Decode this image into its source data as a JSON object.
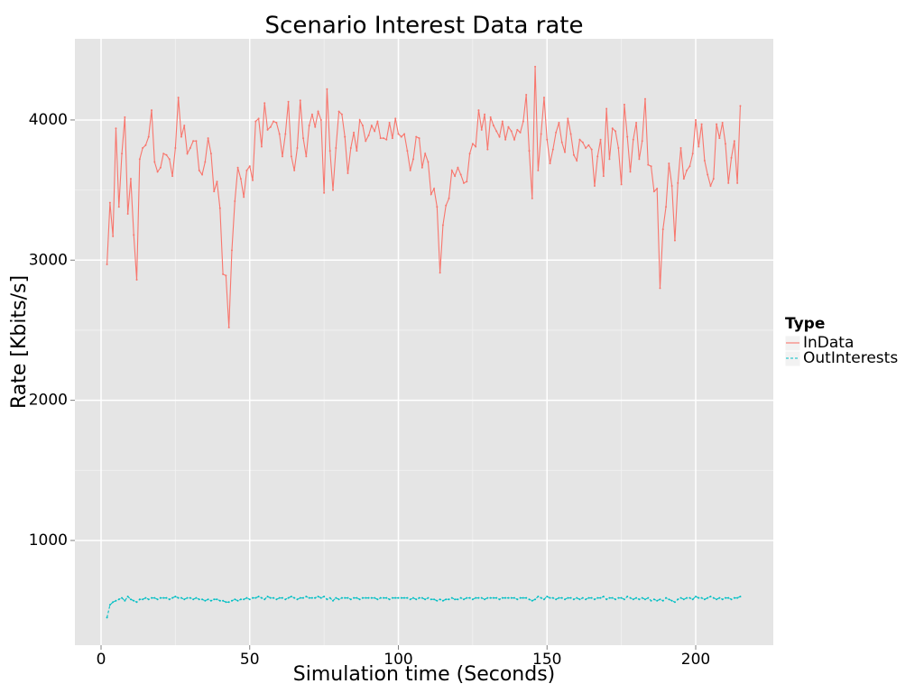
{
  "chart_data": {
    "type": "line",
    "title": "Scenario Interest Data rate",
    "x_label": "Simulation time (Seconds)",
    "y_label": "Rate [Kbits/s]",
    "legend_title": "Type",
    "legend_position": "right",
    "grid": true,
    "xlim": [
      -8.8,
      226.1
    ],
    "ylim": [
      253,
      4579
    ],
    "xticks": [
      0,
      50,
      100,
      150,
      200
    ],
    "yticks": [
      1000,
      2000,
      3000,
      4000
    ],
    "x": [
      2,
      3,
      4,
      5,
      6,
      7,
      8,
      9,
      10,
      11,
      12,
      13,
      14,
      15,
      16,
      17,
      18,
      19,
      20,
      21,
      22,
      23,
      24,
      25,
      26,
      27,
      28,
      29,
      30,
      31,
      32,
      33,
      34,
      35,
      36,
      37,
      38,
      39,
      40,
      41,
      42,
      43,
      44,
      45,
      46,
      47,
      48,
      49,
      50,
      51,
      52,
      53,
      54,
      55,
      56,
      57,
      58,
      59,
      60,
      61,
      62,
      63,
      64,
      65,
      66,
      67,
      68,
      69,
      70,
      71,
      72,
      73,
      74,
      75,
      76,
      77,
      78,
      79,
      80,
      81,
      82,
      83,
      84,
      85,
      86,
      87,
      88,
      89,
      90,
      91,
      92,
      93,
      94,
      95,
      96,
      97,
      98,
      99,
      100,
      101,
      102,
      103,
      104,
      105,
      106,
      107,
      108,
      109,
      110,
      111,
      112,
      113,
      114,
      115,
      116,
      117,
      118,
      119,
      120,
      121,
      122,
      123,
      124,
      125,
      126,
      127,
      128,
      129,
      130,
      131,
      132,
      133,
      134,
      135,
      136,
      137,
      138,
      139,
      140,
      141,
      142,
      143,
      144,
      145,
      146,
      147,
      148,
      149,
      150,
      151,
      152,
      153,
      154,
      155,
      156,
      157,
      158,
      159,
      160,
      161,
      162,
      163,
      164,
      165,
      166,
      167,
      168,
      169,
      170,
      171,
      172,
      173,
      174,
      175,
      176,
      177,
      178,
      179,
      180,
      181,
      182,
      183,
      184,
      185,
      186,
      187,
      188,
      189,
      190,
      191,
      192,
      193,
      194,
      195,
      196,
      197,
      198,
      199,
      200,
      201,
      202,
      203,
      204,
      205,
      206,
      207,
      208,
      209,
      210,
      211,
      212,
      213,
      214,
      215
    ],
    "series": [
      {
        "name": "InData",
        "color": "#f8766d",
        "values": [
          2970,
          3410,
          3170,
          3940,
          3380,
          3760,
          4020,
          3330,
          3580,
          3180,
          2860,
          3720,
          3800,
          3820,
          3880,
          4070,
          3700,
          3630,
          3660,
          3760,
          3750,
          3720,
          3600,
          3800,
          4160,
          3880,
          3960,
          3760,
          3800,
          3850,
          3850,
          3640,
          3610,
          3700,
          3870,
          3760,
          3490,
          3560,
          3370,
          2900,
          2890,
          2520,
          3070,
          3420,
          3660,
          3580,
          3450,
          3640,
          3670,
          3570,
          3990,
          4010,
          3810,
          4120,
          3930,
          3950,
          3990,
          3980,
          3900,
          3740,
          3900,
          4130,
          3740,
          3640,
          3800,
          4140,
          3870,
          3740,
          3960,
          4040,
          3950,
          4060,
          4000,
          3480,
          4220,
          3780,
          3500,
          3800,
          4060,
          4040,
          3880,
          3620,
          3800,
          3910,
          3780,
          4000,
          3960,
          3850,
          3890,
          3960,
          3920,
          3990,
          3870,
          3870,
          3860,
          3980,
          3870,
          4010,
          3900,
          3880,
          3900,
          3780,
          3640,
          3720,
          3880,
          3870,
          3660,
          3760,
          3700,
          3470,
          3510,
          3380,
          2910,
          3250,
          3390,
          3440,
          3640,
          3600,
          3660,
          3610,
          3550,
          3560,
          3760,
          3830,
          3810,
          4070,
          3930,
          4040,
          3790,
          4020,
          3960,
          3920,
          3880,
          3990,
          3860,
          3950,
          3920,
          3860,
          3930,
          3910,
          3990,
          4180,
          3780,
          3440,
          4380,
          3640,
          3900,
          4160,
          3860,
          3690,
          3790,
          3910,
          3980,
          3840,
          3770,
          4010,
          3900,
          3750,
          3710,
          3860,
          3840,
          3800,
          3820,
          3790,
          3530,
          3740,
          3860,
          3600,
          4080,
          3720,
          3940,
          3920,
          3800,
          3540,
          4110,
          3880,
          3630,
          3860,
          3980,
          3720,
          3850,
          4150,
          3680,
          3670,
          3490,
          3510,
          2800,
          3220,
          3380,
          3690,
          3530,
          3140,
          3550,
          3800,
          3580,
          3640,
          3670,
          3760,
          4000,
          3810,
          3970,
          3710,
          3610,
          3530,
          3580,
          3970,
          3870,
          3980,
          3830,
          3550,
          3730,
          3850,
          3550,
          4100
        ]
      },
      {
        "name": "OutInterests",
        "color": "#00bfc4",
        "values": [
          450,
          540,
          560,
          570,
          580,
          590,
          570,
          600,
          580,
          570,
          560,
          580,
          580,
          590,
          580,
          590,
          590,
          580,
          590,
          590,
          590,
          580,
          590,
          600,
          590,
          590,
          580,
          590,
          590,
          580,
          590,
          580,
          580,
          570,
          580,
          570,
          580,
          580,
          570,
          570,
          560,
          560,
          570,
          580,
          570,
          580,
          580,
          590,
          580,
          590,
          590,
          600,
          590,
          580,
          600,
          590,
          590,
          580,
          590,
          590,
          580,
          590,
          600,
          590,
          580,
          590,
          590,
          600,
          590,
          590,
          590,
          600,
          590,
          600,
          580,
          590,
          570,
          590,
          580,
          590,
          590,
          590,
          580,
          590,
          590,
          580,
          590,
          590,
          590,
          590,
          590,
          580,
          590,
          590,
          590,
          580,
          590,
          590,
          590,
          590,
          590,
          590,
          580,
          590,
          580,
          590,
          590,
          580,
          590,
          580,
          580,
          570,
          580,
          570,
          580,
          580,
          590,
          580,
          580,
          590,
          580,
          590,
          590,
          580,
          590,
          590,
          590,
          580,
          590,
          590,
          590,
          590,
          580,
          590,
          590,
          590,
          590,
          590,
          580,
          590,
          590,
          590,
          580,
          570,
          580,
          600,
          590,
          580,
          600,
          590,
          590,
          580,
          590,
          590,
          580,
          590,
          590,
          580,
          590,
          580,
          590,
          580,
          590,
          590,
          580,
          590,
          590,
          600,
          580,
          590,
          590,
          580,
          590,
          590,
          580,
          600,
          590,
          580,
          590,
          580,
          590,
          580,
          590,
          570,
          580,
          570,
          580,
          570,
          590,
          580,
          570,
          560,
          580,
          590,
          580,
          590,
          590,
          580,
          600,
          590,
          590,
          580,
          590,
          600,
          590,
          580,
          590,
          580,
          590,
          590,
          580,
          590,
          590,
          600
        ]
      }
    ]
  }
}
